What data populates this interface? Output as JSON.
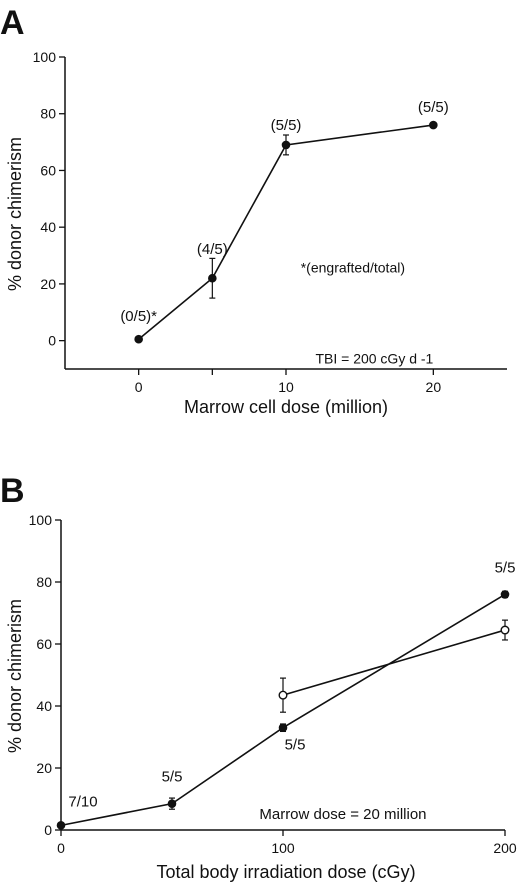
{
  "chart_data": [
    {
      "type": "line",
      "panel_label": "A",
      "xlabel": "Marrow cell dose (million)",
      "ylabel": "% donor chimerism",
      "xlim": [
        -5,
        25
      ],
      "ylim": [
        -10,
        100
      ],
      "xticks": [
        0,
        5,
        10,
        20
      ],
      "xtick_labels": [
        "0",
        "",
        "10",
        "20"
      ],
      "yticks": [
        0,
        20,
        40,
        60,
        80,
        100
      ],
      "grid": false,
      "series": [
        {
          "marker": "filled-circle",
          "x": [
            0,
            5,
            10,
            20
          ],
          "y": [
            0.5,
            22,
            69,
            76
          ],
          "err": [
            0,
            7,
            3.5,
            0.8
          ],
          "labels": [
            "(0/5)*",
            "(4/5)",
            "(5/5)",
            "(5/5)"
          ]
        }
      ],
      "annotations": [
        {
          "id": "footnote",
          "text": "*(engrafted/total)",
          "x": 11,
          "y": 24
        },
        {
          "id": "condition",
          "text": "TBI = 200 cGy d -1",
          "x": 16,
          "y": -8
        }
      ]
    },
    {
      "type": "line",
      "panel_label": "B",
      "xlabel": "Total body irradiation dose (cGy)",
      "ylabel": "% donor chimerism",
      "xlim": [
        0,
        200
      ],
      "ylim": [
        0,
        100
      ],
      "xticks": [
        0,
        100,
        200
      ],
      "yticks": [
        0,
        20,
        40,
        60,
        80,
        100
      ],
      "grid": false,
      "series": [
        {
          "marker": "filled-circle",
          "x": [
            0,
            50,
            100,
            200
          ],
          "y": [
            1.5,
            8.5,
            33,
            76
          ],
          "err": [
            0,
            1.8,
            1.2,
            1
          ],
          "labels": [
            "7/10",
            "5/5",
            "5/5",
            "5/5"
          ]
        },
        {
          "marker": "open-circle",
          "x": [
            100,
            200
          ],
          "y": [
            43.5,
            64.5
          ],
          "err": [
            5.5,
            3.2
          ],
          "labels": []
        }
      ],
      "annotations": [
        {
          "id": "condition",
          "text": "Marrow dose = 20 million",
          "x": 127,
          "y": 3.5
        }
      ]
    }
  ],
  "colors": {
    "line": "#111111",
    "background": "#ffffff"
  }
}
